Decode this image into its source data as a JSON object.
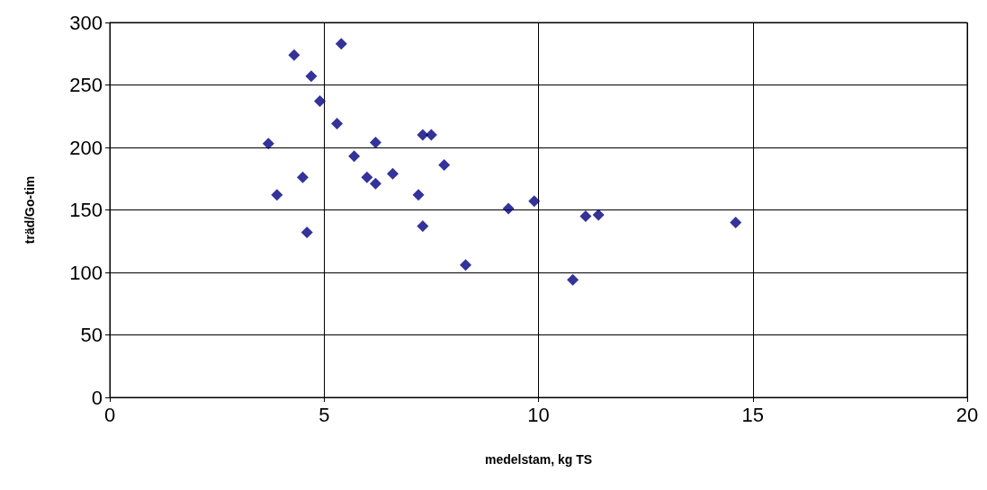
{
  "chart_data": {
    "type": "scatter",
    "xlabel": "medelstam, kg TS",
    "ylabel": "träd/Go-tim",
    "x": [
      3.7,
      3.9,
      4.3,
      4.5,
      4.6,
      4.7,
      4.9,
      5.3,
      5.4,
      5.7,
      6.0,
      6.2,
      6.2,
      6.6,
      7.2,
      7.3,
      7.3,
      7.5,
      7.8,
      8.3,
      9.3,
      9.9,
      10.8,
      11.1,
      11.4,
      14.6
    ],
    "values": [
      203,
      162,
      274,
      176,
      132,
      257,
      237,
      219,
      283,
      193,
      176,
      204,
      171,
      179,
      162,
      137,
      210,
      210,
      186,
      106,
      151,
      157,
      94,
      145,
      146,
      140
    ],
    "color": "#000080",
    "marker": "diamond",
    "grid": true,
    "xlim": [
      0,
      20
    ],
    "xticks": [
      0,
      5,
      10,
      15,
      20
    ],
    "ylim": [
      0,
      300
    ],
    "yticks": [
      0,
      50,
      100,
      150,
      200,
      250,
      300
    ]
  }
}
